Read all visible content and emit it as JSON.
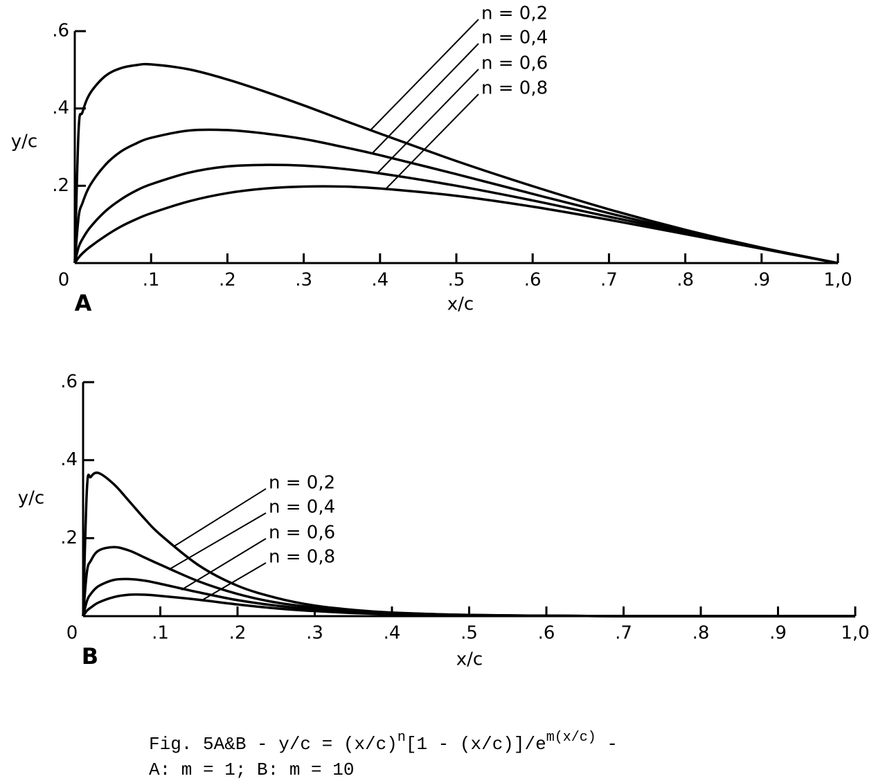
{
  "chart_data": [
    {
      "type": "line",
      "panel": "A",
      "xlabel": "x/c",
      "ylabel": "y/c",
      "x": [
        0,
        0.005,
        0.01,
        0.02,
        0.04,
        0.06,
        0.08,
        0.1,
        0.15,
        0.2,
        0.25,
        0.3,
        0.35,
        0.4,
        0.5,
        0.6,
        0.7,
        0.8,
        0.9,
        1.0
      ],
      "series": [
        {
          "name": "n = 0,2",
          "color": "#000000",
          "values": [
            0,
            0.344,
            0.39,
            0.439,
            0.484,
            0.504,
            0.512,
            0.514,
            0.501,
            0.475,
            0.443,
            0.408,
            0.371,
            0.335,
            0.264,
            0.199,
            0.139,
            0.086,
            0.04,
            0
          ]
        },
        {
          "name": "n = 0,4",
          "color": "#000000",
          "values": [
            0,
            0.119,
            0.155,
            0.201,
            0.254,
            0.288,
            0.309,
            0.324,
            0.343,
            0.344,
            0.335,
            0.321,
            0.301,
            0.279,
            0.23,
            0.179,
            0.129,
            0.082,
            0.039,
            0
          ]
        },
        {
          "name": "n = 0,6",
          "color": "#000000",
          "values": [
            0,
            0.041,
            0.062,
            0.092,
            0.134,
            0.164,
            0.187,
            0.204,
            0.234,
            0.25,
            0.254,
            0.252,
            0.244,
            0.232,
            0.2,
            0.162,
            0.12,
            0.079,
            0.038,
            0
          ]
        },
        {
          "name": "n = 0,8",
          "color": "#000000",
          "values": [
            0,
            0.014,
            0.025,
            0.042,
            0.07,
            0.094,
            0.113,
            0.129,
            0.16,
            0.181,
            0.193,
            0.198,
            0.198,
            0.193,
            0.174,
            0.146,
            0.112,
            0.075,
            0.037,
            0
          ]
        }
      ],
      "xlim": [
        0,
        1.0
      ],
      "ylim": [
        0,
        0.6
      ],
      "xticks": [
        {
          "value": 0,
          "label": "0"
        },
        {
          "value": 0.1,
          "label": ".1"
        },
        {
          "value": 0.2,
          "label": ".2"
        },
        {
          "value": 0.3,
          "label": ".3"
        },
        {
          "value": 0.4,
          "label": ".4"
        },
        {
          "value": 0.5,
          "label": ".5"
        },
        {
          "value": 0.6,
          "label": ".6"
        },
        {
          "value": 0.7,
          "label": ".7"
        },
        {
          "value": 0.8,
          "label": ".8"
        },
        {
          "value": 0.9,
          "label": ".9"
        },
        {
          "value": 1.0,
          "label": "1,0"
        }
      ],
      "yticks": [
        {
          "value": 0.2,
          "label": ".2"
        },
        {
          "value": 0.4,
          "label": ".4"
        },
        {
          "value": 0.6,
          "label": ".6"
        }
      ]
    },
    {
      "type": "line",
      "panel": "B",
      "xlabel": "x/c",
      "ylabel": "y/c",
      "x": [
        0,
        0.005,
        0.01,
        0.02,
        0.04,
        0.06,
        0.08,
        0.1,
        0.15,
        0.2,
        0.25,
        0.3,
        0.35,
        0.4,
        0.5,
        0.6,
        0.7,
        0.8,
        0.9,
        1.0
      ],
      "series": [
        {
          "name": "n = 0,2",
          "color": "#000000",
          "values": [
            0,
            0.328,
            0.357,
            0.367,
            0.338,
            0.294,
            0.249,
            0.209,
            0.13,
            0.078,
            0.047,
            0.027,
            0.016,
            0.009,
            0.003,
            0.001,
            0,
            0,
            0,
            0
          ]
        },
        {
          "name": "n = 0,4",
          "color": "#000000",
          "values": [
            0,
            0.114,
            0.142,
            0.168,
            0.177,
            0.168,
            0.15,
            0.132,
            0.089,
            0.057,
            0.035,
            0.022,
            0.013,
            0.008,
            0.003,
            0.001,
            0,
            0,
            0,
            0
          ]
        },
        {
          "name": "n = 0,6",
          "color": "#000000",
          "values": [
            0,
            0.039,
            0.057,
            0.077,
            0.093,
            0.095,
            0.091,
            0.083,
            0.061,
            0.041,
            0.027,
            0.017,
            0.01,
            0.006,
            0.002,
            0.001,
            0,
            0,
            0,
            0
          ]
        },
        {
          "name": "n = 0,8",
          "color": "#000000",
          "values": [
            0,
            0.014,
            0.022,
            0.035,
            0.049,
            0.055,
            0.055,
            0.052,
            0.042,
            0.03,
            0.02,
            0.013,
            0.008,
            0.005,
            0.002,
            0.001,
            0,
            0,
            0,
            0
          ]
        }
      ],
      "xlim": [
        0,
        1.0
      ],
      "ylim": [
        0,
        0.6
      ],
      "xticks": [
        {
          "value": 0,
          "label": "0"
        },
        {
          "value": 0.1,
          "label": ".1"
        },
        {
          "value": 0.2,
          "label": ".2"
        },
        {
          "value": 0.3,
          "label": ".3"
        },
        {
          "value": 0.4,
          "label": ".4"
        },
        {
          "value": 0.5,
          "label": ".5"
        },
        {
          "value": 0.6,
          "label": ".6"
        },
        {
          "value": 0.7,
          "label": ".7"
        },
        {
          "value": 0.8,
          "label": ".8"
        },
        {
          "value": 0.9,
          "label": ".9"
        },
        {
          "value": 1.0,
          "label": "1,0"
        }
      ],
      "yticks": [
        {
          "value": 0.2,
          "label": ".2"
        },
        {
          "value": 0.4,
          "label": ".4"
        },
        {
          "value": 0.6,
          "label": ".6"
        }
      ]
    }
  ],
  "caption": {
    "line1": [
      "Fig. 5A&B - y/c = (x/c)",
      "n",
      "[1 - (x/c)]/e",
      "m(x/c)",
      " -"
    ],
    "line2": "A: m = 1; B: m = 10"
  }
}
